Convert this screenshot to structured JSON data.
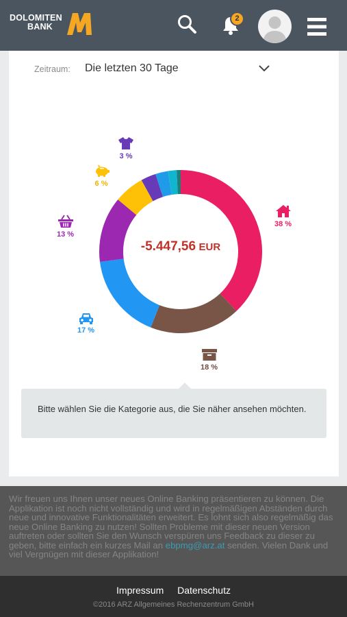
{
  "header": {
    "logo_line1": "DOLOMITEN",
    "logo_line2": "BANK",
    "notification_count": "2",
    "icons": [
      "search-icon",
      "bell-icon",
      "avatar",
      "menu-icon"
    ],
    "colors": {
      "header_bg": "#4a5560",
      "logo_accent": "#f5a623",
      "badge": "#f5a623"
    }
  },
  "filter": {
    "label": "Zeitraum:",
    "value": "Die letzten 30 Tage"
  },
  "summary": {
    "amount": "-5.447,56",
    "currency": "EUR"
  },
  "chart_data": {
    "type": "pie",
    "title": "",
    "total_label": "-5.447,56 EUR",
    "slices": [
      {
        "icon": "home-icon",
        "label": "38 %",
        "value": 38,
        "color": "#e91e63"
      },
      {
        "icon": "archive-icon",
        "label": "18 %",
        "value": 18,
        "color": "#795548"
      },
      {
        "icon": "car-icon",
        "label": "17 %",
        "value": 17,
        "color": "#2196f3"
      },
      {
        "icon": "basket-icon",
        "label": "13 %",
        "value": 13,
        "color": "#9c27b0"
      },
      {
        "icon": "piggy-bank-icon",
        "label": "6 %",
        "value": 6,
        "color": "#ffc107"
      },
      {
        "icon": "shirt-icon",
        "label": "3 %",
        "value": 3,
        "color": "#673ab7"
      },
      {
        "icon": "",
        "label": "",
        "value": 2.5,
        "color": "#1e9be9"
      },
      {
        "icon": "",
        "label": "",
        "value": 1.7,
        "color": "#12b5cf"
      },
      {
        "icon": "",
        "label": "",
        "value": 0.8,
        "color": "#1c7f7a"
      }
    ]
  },
  "info": {
    "text": "Bitte wählen Sie die Kategorie aus, die Sie näher ansehen möchten."
  },
  "notice": {
    "text_before": "Wir freuen uns Ihnen unser neues Online Banking präsentieren zu können. Die Applikation ist noch nicht vollständig und wird in regelmäßigen Abständen durch neue und innovative Funktionalitäten erweitert. Es lohnt sich also regelmäßig das neue Online Banking zu nutzen! Sollten Probleme mit dieser neuen Version auftreten oder sollten Sie den Wunsch verspüren uns Feedback zu dieser zu geben, bitte einfach ein kurzes Mail an ",
    "email": "ebpmg@arz.at",
    "text_after": " senden. Vielen Dank und viel Vergnügen mit dieser Applikation!"
  },
  "footer": {
    "impressum": "Impressum",
    "datenschutz": "Datenschutz",
    "copyright": "©2016 ARZ Allgemeines Rechenzentrum GmbH"
  }
}
